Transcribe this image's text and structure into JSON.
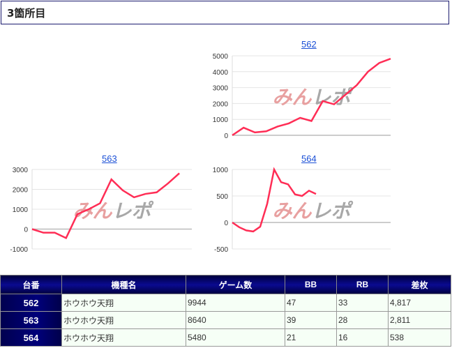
{
  "section_title": "3箇所目",
  "watermark": {
    "part1": "みん",
    "part2": "レポ"
  },
  "chart_data": [
    {
      "type": "line",
      "title": "562",
      "x": [
        0,
        1,
        2,
        3,
        4,
        5,
        6,
        7,
        8,
        9,
        10,
        11,
        12,
        13,
        14
      ],
      "xlim": [
        0,
        14
      ],
      "values": [
        0,
        480,
        180,
        250,
        550,
        750,
        1100,
        900,
        2150,
        1950,
        2550,
        3150,
        4000,
        4550,
        4817
      ],
      "ylim": [
        0,
        5000
      ],
      "yticks": [
        0,
        1000,
        2000,
        3000,
        4000,
        5000
      ],
      "color": "#ff2d55",
      "grid": true
    },
    {
      "type": "line",
      "title": "563",
      "x": [
        0,
        1,
        2,
        3,
        4,
        5,
        6,
        7,
        8,
        9,
        10,
        11,
        12,
        13
      ],
      "xlim": [
        0,
        14.1
      ],
      "values": [
        0,
        -180,
        -180,
        -450,
        750,
        1000,
        1300,
        2500,
        1950,
        1600,
        1770,
        1850,
        2300,
        2811
      ],
      "ylim": [
        -1000,
        3000
      ],
      "yticks": [
        -1000,
        0,
        1000,
        2000,
        3000
      ],
      "color": "#ff2d55",
      "grid": true
    },
    {
      "type": "line",
      "title": "564",
      "x": [
        0,
        1,
        2,
        3,
        4,
        5,
        6,
        7,
        8,
        9,
        10,
        11,
        12
      ],
      "xlim": [
        0,
        22.7
      ],
      "values": [
        0,
        -90,
        -150,
        -170,
        -80,
        350,
        1000,
        760,
        720,
        530,
        500,
        600,
        538
      ],
      "ylim": [
        -500,
        1000
      ],
      "yticks": [
        -500,
        0,
        500,
        1000
      ],
      "color": "#ff2d55",
      "grid": true
    }
  ],
  "table": {
    "headers": [
      "台番",
      "機種名",
      "ゲーム数",
      "BB",
      "RB",
      "差枚"
    ],
    "rows": [
      [
        "562",
        "ホウホウ天翔",
        "9944",
        "47",
        "33",
        "4,817"
      ],
      [
        "563",
        "ホウホウ天翔",
        "8640",
        "39",
        "28",
        "2,811"
      ],
      [
        "564",
        "ホウホウ天翔",
        "5480",
        "21",
        "16",
        "538"
      ]
    ]
  }
}
